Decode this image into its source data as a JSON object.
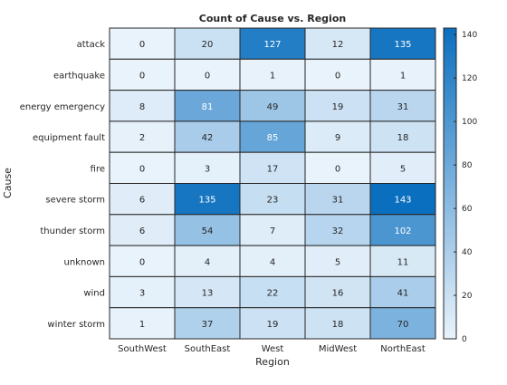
{
  "chart_data": {
    "type": "heatmap",
    "title": "Count of Cause vs. Region",
    "xlabel": "Region",
    "ylabel": "Cause",
    "x_categories": [
      "SouthWest",
      "SouthEast",
      "West",
      "MidWest",
      "NorthEast"
    ],
    "y_categories": [
      "attack",
      "earthquake",
      "energy emergency",
      "equipment fault",
      "fire",
      "severe storm",
      "thunder storm",
      "unknown",
      "wind",
      "winter storm"
    ],
    "values": [
      [
        0,
        20,
        127,
        12,
        135
      ],
      [
        0,
        0,
        1,
        0,
        1
      ],
      [
        8,
        81,
        49,
        19,
        31
      ],
      [
        2,
        42,
        85,
        9,
        18
      ],
      [
        0,
        3,
        17,
        0,
        5
      ],
      [
        6,
        135,
        23,
        31,
        143
      ],
      [
        6,
        54,
        7,
        32,
        102
      ],
      [
        0,
        4,
        4,
        5,
        11
      ],
      [
        3,
        13,
        22,
        16,
        41
      ],
      [
        1,
        37,
        19,
        18,
        70
      ]
    ],
    "colorbar": {
      "range": [
        0,
        143
      ],
      "ticks": [
        "0",
        "20",
        "40",
        "60",
        "80",
        "100",
        "120",
        "140"
      ],
      "low_color": "#e9f3fb",
      "high_color": "#0b6fbf"
    },
    "grid": true,
    "legend": "colorbar-right"
  }
}
